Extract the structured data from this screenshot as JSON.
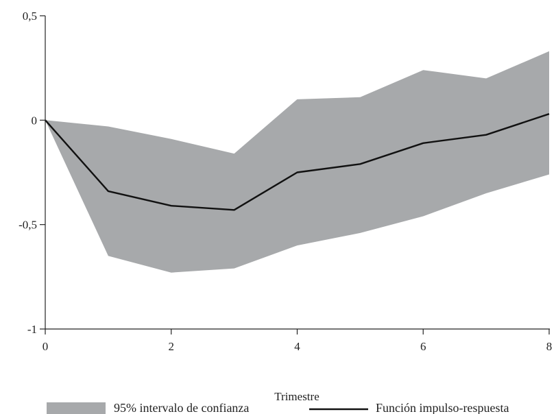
{
  "chart_data": {
    "type": "area",
    "xlabel": "Trimestre",
    "ylabel": "",
    "x": [
      0,
      1,
      2,
      3,
      4,
      5,
      6,
      7,
      8
    ],
    "xlim": [
      0,
      8
    ],
    "ylim": [
      -1,
      0.5
    ],
    "x_ticks": [
      0,
      2,
      4,
      6,
      8
    ],
    "x_tick_labels": [
      "0",
      "2",
      "4",
      "6",
      "8"
    ],
    "y_ticks": [
      0.5,
      0,
      -0.5,
      -1
    ],
    "y_tick_labels": [
      "0,5",
      "0",
      "-0,5",
      "-1"
    ],
    "grid": false,
    "legend_placement": "bottom",
    "series": [
      {
        "name": "95% intervalo de confianza",
        "kind": "band",
        "color": "#a7a9ab",
        "upper": [
          0,
          -0.03,
          -0.09,
          -0.16,
          0.1,
          0.11,
          0.24,
          0.2,
          0.33
        ],
        "lower": [
          0,
          -0.65,
          -0.73,
          -0.71,
          -0.6,
          -0.54,
          -0.46,
          -0.35,
          -0.26
        ]
      },
      {
        "name": "Función impulso-respuesta",
        "kind": "line",
        "color": "#111111",
        "values": [
          0,
          -0.34,
          -0.41,
          -0.43,
          -0.25,
          -0.21,
          -0.11,
          -0.07,
          0.03
        ]
      }
    ]
  }
}
